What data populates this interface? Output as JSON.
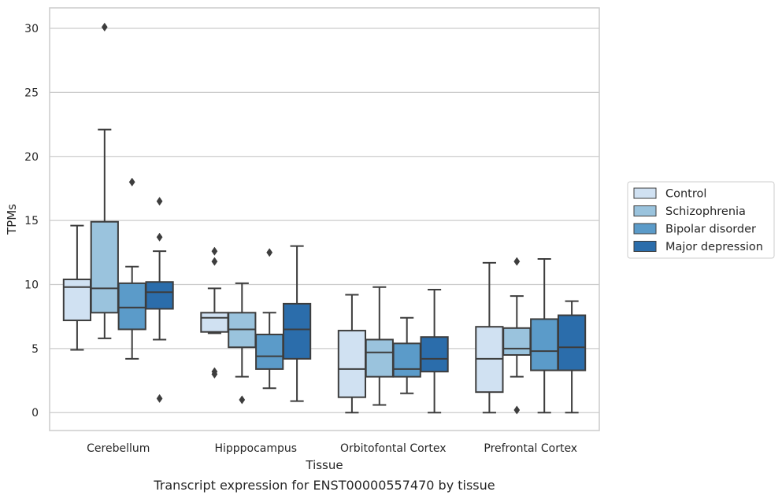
{
  "caption": "Transcript expression for ENST00000557470 by tissue",
  "chart_data": {
    "type": "box",
    "xlabel": "Tissue",
    "ylabel": "TPMs",
    "ylim": [
      -1.4,
      31.6
    ],
    "yticks": [
      0,
      5,
      10,
      15,
      20,
      25,
      30
    ],
    "grid": "horizontal",
    "legend_position": "right",
    "categories": [
      "Cerebellum",
      "Hipppocampus",
      "Orbitofontal Cortex",
      "Prefrontal Cortex"
    ],
    "series": [
      {
        "name": "Control",
        "color": "#d0e1f2",
        "boxes": [
          {
            "whisker_low": 4.9,
            "q1": 7.2,
            "median": 9.8,
            "q3": 10.4,
            "whisker_high": 14.6,
            "outliers": []
          },
          {
            "whisker_low": 6.2,
            "q1": 6.3,
            "median": 7.4,
            "q3": 7.8,
            "whisker_high": 9.7,
            "outliers": [
              12.6,
              11.8,
              3.2,
              3.0
            ]
          },
          {
            "whisker_low": 0.0,
            "q1": 1.2,
            "median": 3.4,
            "q3": 6.4,
            "whisker_high": 9.2,
            "outliers": []
          },
          {
            "whisker_low": 0.0,
            "q1": 1.6,
            "median": 4.2,
            "q3": 6.7,
            "whisker_high": 11.7,
            "outliers": []
          }
        ]
      },
      {
        "name": "Schizophrenia",
        "color": "#9ac3dd",
        "boxes": [
          {
            "whisker_low": 5.8,
            "q1": 7.8,
            "median": 9.7,
            "q3": 14.9,
            "whisker_high": 22.1,
            "outliers": [
              30.1
            ]
          },
          {
            "whisker_low": 2.8,
            "q1": 5.1,
            "median": 6.5,
            "q3": 7.8,
            "whisker_high": 10.1,
            "outliers": [
              1.0
            ]
          },
          {
            "whisker_low": 0.6,
            "q1": 2.8,
            "median": 4.7,
            "q3": 5.7,
            "whisker_high": 9.8,
            "outliers": []
          },
          {
            "whisker_low": 2.8,
            "q1": 4.5,
            "median": 5.0,
            "q3": 6.6,
            "whisker_high": 9.1,
            "outliers": [
              11.8,
              0.2
            ]
          }
        ]
      },
      {
        "name": "Bipolar disorder",
        "color": "#5b9bc9",
        "boxes": [
          {
            "whisker_low": 4.2,
            "q1": 6.5,
            "median": 8.2,
            "q3": 10.1,
            "whisker_high": 11.4,
            "outliers": [
              18.0
            ]
          },
          {
            "whisker_low": 1.9,
            "q1": 3.4,
            "median": 4.4,
            "q3": 6.1,
            "whisker_high": 7.8,
            "outliers": [
              12.5
            ]
          },
          {
            "whisker_low": 1.5,
            "q1": 2.8,
            "median": 3.4,
            "q3": 5.4,
            "whisker_high": 7.4,
            "outliers": []
          },
          {
            "whisker_low": 0.0,
            "q1": 3.3,
            "median": 4.8,
            "q3": 7.3,
            "whisker_high": 12.0,
            "outliers": []
          }
        ]
      },
      {
        "name": "Major depression",
        "color": "#2b6dab",
        "boxes": [
          {
            "whisker_low": 5.7,
            "q1": 8.1,
            "median": 9.4,
            "q3": 10.2,
            "whisker_high": 12.6,
            "outliers": [
              16.5,
              13.7,
              1.1
            ]
          },
          {
            "whisker_low": 0.9,
            "q1": 4.2,
            "median": 6.5,
            "q3": 8.5,
            "whisker_high": 13.0,
            "outliers": []
          },
          {
            "whisker_low": 0.0,
            "q1": 3.2,
            "median": 4.2,
            "q3": 5.9,
            "whisker_high": 9.6,
            "outliers": []
          },
          {
            "whisker_low": 0.0,
            "q1": 3.3,
            "median": 5.1,
            "q3": 7.6,
            "whisker_high": 8.7,
            "outliers": []
          }
        ]
      }
    ]
  }
}
